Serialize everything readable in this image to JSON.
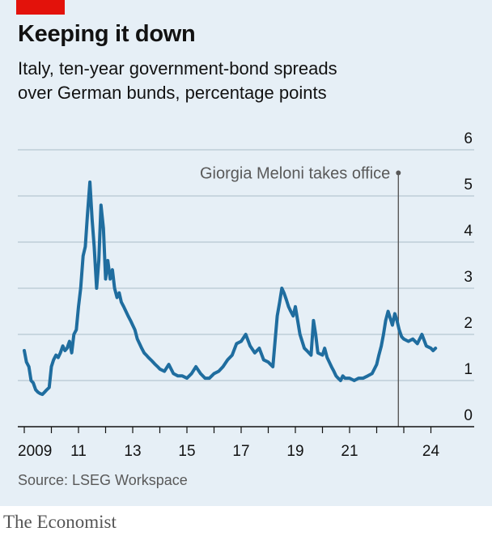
{
  "brand": "The Economist",
  "source": "Source: LSEG Workspace",
  "chart_data": {
    "type": "line",
    "title": "Keeping it down",
    "subtitle_lines": [
      "Italy, ten-year government-bond spreads",
      "over German bunds, percentage points"
    ],
    "ylim": [
      0,
      6
    ],
    "y_ticks": [
      0,
      1,
      2,
      3,
      4,
      5,
      6
    ],
    "y_tick_labels": [
      "0",
      "1",
      "2",
      "3",
      "4",
      "5",
      "6"
    ],
    "xlim": [
      2009.0,
      2025.0
    ],
    "x_ticks": [
      2009,
      2011,
      2013,
      2015,
      2017,
      2019,
      2021,
      2024
    ],
    "x_tick_labels": [
      "2009",
      "11",
      "13",
      "15",
      "17",
      "19",
      "21",
      "24"
    ],
    "grid": "horizontal",
    "annotation": {
      "text": "Giorgia Meloni takes office",
      "x": 2022.8
    },
    "series": [
      {
        "color": "#1f6d9f",
        "x": [
          2009.0,
          2009.08,
          2009.17,
          2009.25,
          2009.33,
          2009.42,
          2009.5,
          2009.58,
          2009.67,
          2009.75,
          2009.83,
          2009.92,
          2010.0,
          2010.08,
          2010.17,
          2010.25,
          2010.33,
          2010.42,
          2010.5,
          2010.58,
          2010.67,
          2010.75,
          2010.83,
          2010.92,
          2011.0,
          2011.08,
          2011.17,
          2011.25,
          2011.33,
          2011.42,
          2011.5,
          2011.58,
          2011.67,
          2011.75,
          2011.83,
          2011.92,
          2012.0,
          2012.08,
          2012.17,
          2012.25,
          2012.33,
          2012.42,
          2012.5,
          2012.58,
          2012.67,
          2012.75,
          2012.83,
          2012.92,
          2013.0,
          2013.08,
          2013.17,
          2013.25,
          2013.33,
          2013.42,
          2013.5,
          2013.58,
          2013.67,
          2013.75,
          2013.83,
          2013.92,
          2014.0,
          2014.17,
          2014.33,
          2014.5,
          2014.67,
          2014.83,
          2015.0,
          2015.17,
          2015.33,
          2015.5,
          2015.67,
          2015.83,
          2016.0,
          2016.17,
          2016.33,
          2016.5,
          2016.67,
          2016.83,
          2017.0,
          2017.17,
          2017.33,
          2017.5,
          2017.67,
          2017.83,
          2018.0,
          2018.17,
          2018.33,
          2018.42,
          2018.5,
          2018.58,
          2018.67,
          2018.75,
          2018.83,
          2018.92,
          2019.0,
          2019.17,
          2019.33,
          2019.42,
          2019.5,
          2019.58,
          2019.67,
          2019.75,
          2019.83,
          2020.0,
          2020.08,
          2020.17,
          2020.25,
          2020.33,
          2020.42,
          2020.5,
          2020.58,
          2020.67,
          2020.75,
          2020.83,
          2021.0,
          2021.17,
          2021.33,
          2021.5,
          2021.67,
          2021.83,
          2022.0,
          2022.08,
          2022.17,
          2022.25,
          2022.33,
          2022.42,
          2022.5,
          2022.58,
          2022.67,
          2022.75,
          2022.83,
          2022.92,
          2023.0,
          2023.17,
          2023.33,
          2023.5,
          2023.67,
          2023.83,
          2024.0,
          2024.08,
          2024.17
        ],
        "values": [
          1.65,
          1.4,
          1.3,
          1.0,
          0.95,
          0.8,
          0.75,
          0.72,
          0.7,
          0.75,
          0.8,
          0.85,
          1.3,
          1.45,
          1.55,
          1.5,
          1.6,
          1.75,
          1.65,
          1.7,
          1.85,
          1.6,
          2.0,
          2.1,
          2.6,
          3.0,
          3.7,
          3.9,
          4.6,
          5.3,
          4.5,
          3.9,
          3.0,
          3.6,
          4.8,
          4.3,
          3.2,
          3.6,
          3.2,
          3.4,
          3.0,
          2.8,
          2.9,
          2.7,
          2.6,
          2.5,
          2.4,
          2.3,
          2.2,
          2.1,
          1.9,
          1.8,
          1.7,
          1.6,
          1.55,
          1.5,
          1.45,
          1.4,
          1.35,
          1.3,
          1.25,
          1.2,
          1.35,
          1.15,
          1.1,
          1.1,
          1.05,
          1.15,
          1.3,
          1.15,
          1.05,
          1.05,
          1.15,
          1.2,
          1.3,
          1.45,
          1.55,
          1.8,
          1.85,
          2.0,
          1.75,
          1.6,
          1.7,
          1.45,
          1.4,
          1.3,
          2.4,
          2.7,
          3.0,
          2.9,
          2.75,
          2.6,
          2.5,
          2.4,
          2.6,
          2.0,
          1.7,
          1.65,
          1.6,
          1.55,
          2.3,
          2.0,
          1.6,
          1.55,
          1.7,
          1.5,
          1.4,
          1.3,
          1.2,
          1.1,
          1.05,
          1.0,
          1.1,
          1.05,
          1.05,
          1.0,
          1.05,
          1.05,
          1.1,
          1.15,
          1.35,
          1.55,
          1.75,
          2.0,
          2.3,
          2.5,
          2.35,
          2.2,
          2.45,
          2.3,
          2.1,
          1.95,
          1.9,
          1.85,
          1.9,
          1.8,
          2.0,
          1.75,
          1.7,
          1.65,
          1.7
        ]
      }
    ]
  }
}
